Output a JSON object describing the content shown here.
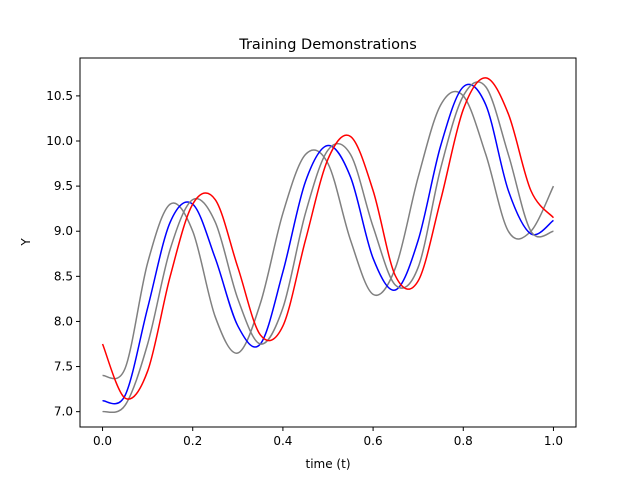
{
  "chart_data": {
    "type": "line",
    "title": "Training Demonstrations",
    "xlabel": "time (t)",
    "ylabel": "Y",
    "xlim": [
      -0.05,
      1.05
    ],
    "ylim": [
      6.83,
      10.92
    ],
    "x_ticks": [
      0.0,
      0.2,
      0.4,
      0.6,
      0.8,
      1.0
    ],
    "x_tick_labels": [
      "0.0",
      "0.2",
      "0.4",
      "0.6",
      "0.8",
      "1.0"
    ],
    "y_ticks": [
      7.0,
      7.5,
      8.0,
      8.5,
      9.0,
      9.5,
      10.0,
      10.5
    ],
    "y_tick_labels": [
      "7.0",
      "7.5",
      "8.0",
      "8.5",
      "9.0",
      "9.5",
      "10.0",
      "10.5"
    ],
    "grid": false,
    "legend": "none",
    "x": [
      0.0,
      0.05,
      0.1,
      0.15,
      0.2,
      0.25,
      0.3,
      0.35,
      0.4,
      0.45,
      0.5,
      0.55,
      0.6,
      0.65,
      0.7,
      0.75,
      0.8,
      0.85,
      0.9,
      0.95,
      1.0
    ],
    "series": [
      {
        "color": "#808080",
        "values": [
          7.4,
          7.48,
          8.65,
          9.3,
          9.0,
          8.05,
          7.65,
          8.2,
          9.2,
          9.85,
          9.75,
          8.9,
          8.3,
          8.6,
          9.6,
          10.4,
          10.5,
          9.85,
          9.0,
          9.0,
          9.5
        ]
      },
      {
        "color": "#0000ff",
        "values": [
          7.12,
          7.18,
          8.15,
          9.1,
          9.3,
          8.7,
          7.95,
          7.75,
          8.55,
          9.55,
          9.95,
          9.6,
          8.7,
          8.35,
          8.9,
          9.95,
          10.6,
          10.4,
          9.45,
          8.97,
          9.12
        ]
      },
      {
        "color": "#808080",
        "values": [
          7.0,
          7.07,
          7.75,
          8.8,
          9.35,
          9.1,
          8.25,
          7.75,
          8.15,
          9.2,
          9.9,
          9.85,
          9.05,
          8.4,
          8.6,
          9.7,
          10.5,
          10.6,
          9.85,
          9.0,
          9.0
        ]
      },
      {
        "color": "#ff0000",
        "values": [
          7.75,
          7.15,
          7.45,
          8.5,
          9.3,
          9.35,
          8.6,
          7.85,
          7.95,
          8.9,
          9.8,
          10.05,
          9.45,
          8.5,
          8.45,
          9.35,
          10.35,
          10.7,
          10.3,
          9.45,
          9.15
        ]
      }
    ]
  }
}
